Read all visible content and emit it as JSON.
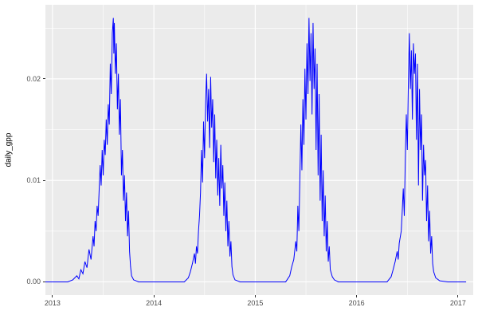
{
  "chart_data": {
    "type": "line",
    "title": "",
    "xlabel": "",
    "ylabel": "daily_gpp",
    "legend": "none",
    "grid": "on",
    "panel_bg": "#EBEBEB",
    "grid_color": "#FFFFFF",
    "line_color": "#0000FF",
    "xlim": [
      2012.93,
      2017.15
    ],
    "ylim": [
      -0.0013,
      0.0273
    ],
    "x_ticks": [
      {
        "value": 2013,
        "label": "2013"
      },
      {
        "value": 2014,
        "label": "2014"
      },
      {
        "value": 2015,
        "label": "2015"
      },
      {
        "value": 2016,
        "label": "2016"
      },
      {
        "value": 2017,
        "label": "2017"
      }
    ],
    "y_ticks": [
      {
        "value": 0.0,
        "label": "0.00"
      },
      {
        "value": 0.01,
        "label": "0.01"
      },
      {
        "value": 0.02,
        "label": "0.02"
      }
    ],
    "x_minor": [
      2013.5,
      2014.5,
      2015.5,
      2016.5
    ],
    "y_minor": [
      0.005,
      0.015,
      0.025
    ],
    "series": [
      {
        "name": "daily_gpp",
        "points": [
          [
            2012.93,
            0
          ],
          [
            2013.0,
            0
          ],
          [
            2013.05,
            0
          ],
          [
            2013.1,
            0
          ],
          [
            2013.15,
            0
          ],
          [
            2013.2,
            0.0002
          ],
          [
            2013.24,
            0.0006
          ],
          [
            2013.26,
            0.0003
          ],
          [
            2013.28,
            0.0012
          ],
          [
            2013.3,
            0.0008
          ],
          [
            2013.32,
            0.002
          ],
          [
            2013.34,
            0.0014
          ],
          [
            2013.36,
            0.0032
          ],
          [
            2013.38,
            0.0022
          ],
          [
            2013.4,
            0.0045
          ],
          [
            2013.41,
            0.0035
          ],
          [
            2013.42,
            0.006
          ],
          [
            2013.43,
            0.005
          ],
          [
            2013.44,
            0.0075
          ],
          [
            2013.45,
            0.0065
          ],
          [
            2013.46,
            0.009
          ],
          [
            2013.47,
            0.0115
          ],
          [
            2013.48,
            0.0095
          ],
          [
            2013.49,
            0.013
          ],
          [
            2013.5,
            0.0105
          ],
          [
            2013.51,
            0.014
          ],
          [
            2013.52,
            0.0125
          ],
          [
            2013.53,
            0.016
          ],
          [
            2013.54,
            0.0135
          ],
          [
            2013.55,
            0.0175
          ],
          [
            2013.56,
            0.0155
          ],
          [
            2013.57,
            0.0215
          ],
          [
            2013.58,
            0.0185
          ],
          [
            2013.59,
            0.0245
          ],
          [
            2013.6,
            0.026
          ],
          [
            2013.605,
            0.0225
          ],
          [
            2013.61,
            0.0255
          ],
          [
            2013.62,
            0.0205
          ],
          [
            2013.63,
            0.0235
          ],
          [
            2013.64,
            0.017
          ],
          [
            2013.65,
            0.0205
          ],
          [
            2013.66,
            0.0145
          ],
          [
            2013.67,
            0.018
          ],
          [
            2013.68,
            0.0105
          ],
          [
            2013.69,
            0.013
          ],
          [
            2013.7,
            0.008
          ],
          [
            2013.71,
            0.0105
          ],
          [
            2013.72,
            0.006
          ],
          [
            2013.73,
            0.0088
          ],
          [
            2013.74,
            0.0045
          ],
          [
            2013.75,
            0.007
          ],
          [
            2013.76,
            0.003
          ],
          [
            2013.77,
            0.0015
          ],
          [
            2013.78,
            0.0006
          ],
          [
            2013.8,
            0.0002
          ],
          [
            2013.85,
            0
          ],
          [
            2013.9,
            0
          ],
          [
            2014.0,
            0
          ],
          [
            2014.1,
            0
          ],
          [
            2014.2,
            0
          ],
          [
            2014.3,
            0
          ],
          [
            2014.34,
            0.0004
          ],
          [
            2014.36,
            0.001
          ],
          [
            2014.38,
            0.0018
          ],
          [
            2014.4,
            0.0028
          ],
          [
            2014.41,
            0.0018
          ],
          [
            2014.42,
            0.0035
          ],
          [
            2014.43,
            0.0028
          ],
          [
            2014.44,
            0.005
          ],
          [
            2014.45,
            0.0065
          ],
          [
            2014.46,
            0.0088
          ],
          [
            2014.47,
            0.013
          ],
          [
            2014.48,
            0.0098
          ],
          [
            2014.49,
            0.0158
          ],
          [
            2014.5,
            0.0122
          ],
          [
            2014.51,
            0.0178
          ],
          [
            2014.52,
            0.0205
          ],
          [
            2014.53,
            0.0158
          ],
          [
            2014.54,
            0.019
          ],
          [
            2014.55,
            0.0132
          ],
          [
            2014.56,
            0.0202
          ],
          [
            2014.57,
            0.0152
          ],
          [
            2014.58,
            0.018
          ],
          [
            2014.59,
            0.0118
          ],
          [
            2014.6,
            0.0165
          ],
          [
            2014.61,
            0.0102
          ],
          [
            2014.62,
            0.014
          ],
          [
            2014.63,
            0.0085
          ],
          [
            2014.64,
            0.0122
          ],
          [
            2014.65,
            0.0075
          ],
          [
            2014.66,
            0.0135
          ],
          [
            2014.67,
            0.0092
          ],
          [
            2014.68,
            0.0115
          ],
          [
            2014.69,
            0.0065
          ],
          [
            2014.7,
            0.0098
          ],
          [
            2014.71,
            0.005
          ],
          [
            2014.72,
            0.008
          ],
          [
            2014.73,
            0.0035
          ],
          [
            2014.74,
            0.006
          ],
          [
            2014.75,
            0.0025
          ],
          [
            2014.76,
            0.004
          ],
          [
            2014.77,
            0.0015
          ],
          [
            2014.78,
            0.0007
          ],
          [
            2014.8,
            0.0002
          ],
          [
            2014.85,
            0
          ],
          [
            2014.9,
            0
          ],
          [
            2015.0,
            0
          ],
          [
            2015.1,
            0
          ],
          [
            2015.2,
            0
          ],
          [
            2015.3,
            0
          ],
          [
            2015.34,
            0.0006
          ],
          [
            2015.36,
            0.0015
          ],
          [
            2015.38,
            0.0022
          ],
          [
            2015.4,
            0.004
          ],
          [
            2015.41,
            0.003
          ],
          [
            2015.42,
            0.0075
          ],
          [
            2015.43,
            0.005
          ],
          [
            2015.44,
            0.0102
          ],
          [
            2015.45,
            0.0155
          ],
          [
            2015.46,
            0.011
          ],
          [
            2015.47,
            0.018
          ],
          [
            2015.48,
            0.0135
          ],
          [
            2015.49,
            0.021
          ],
          [
            2015.5,
            0.016
          ],
          [
            2015.51,
            0.0235
          ],
          [
            2015.52,
            0.0185
          ],
          [
            2015.53,
            0.026
          ],
          [
            2015.54,
            0.0198
          ],
          [
            2015.55,
            0.0245
          ],
          [
            2015.56,
            0.0165
          ],
          [
            2015.57,
            0.0255
          ],
          [
            2015.58,
            0.019
          ],
          [
            2015.59,
            0.023
          ],
          [
            2015.6,
            0.013
          ],
          [
            2015.61,
            0.0215
          ],
          [
            2015.62,
            0.0105
          ],
          [
            2015.63,
            0.0185
          ],
          [
            2015.64,
            0.008
          ],
          [
            2015.65,
            0.0145
          ],
          [
            2015.66,
            0.006
          ],
          [
            2015.67,
            0.011
          ],
          [
            2015.68,
            0.0045
          ],
          [
            2015.69,
            0.0085
          ],
          [
            2015.7,
            0.003
          ],
          [
            2015.71,
            0.006
          ],
          [
            2015.72,
            0.002
          ],
          [
            2015.73,
            0.0035
          ],
          [
            2015.74,
            0.0012
          ],
          [
            2015.76,
            0.0005
          ],
          [
            2015.78,
            0.0002
          ],
          [
            2015.82,
            0
          ],
          [
            2015.9,
            0
          ],
          [
            2016.0,
            0
          ],
          [
            2016.1,
            0
          ],
          [
            2016.2,
            0
          ],
          [
            2016.3,
            0
          ],
          [
            2016.34,
            0.0005
          ],
          [
            2016.36,
            0.0012
          ],
          [
            2016.38,
            0.002
          ],
          [
            2016.4,
            0.003
          ],
          [
            2016.41,
            0.0022
          ],
          [
            2016.42,
            0.0038
          ],
          [
            2016.44,
            0.005
          ],
          [
            2016.45,
            0.007
          ],
          [
            2016.46,
            0.0092
          ],
          [
            2016.47,
            0.0065
          ],
          [
            2016.48,
            0.012
          ],
          [
            2016.49,
            0.0165
          ],
          [
            2016.5,
            0.013
          ],
          [
            2016.51,
            0.0195
          ],
          [
            2016.52,
            0.0245
          ],
          [
            2016.53,
            0.019
          ],
          [
            2016.54,
            0.0228
          ],
          [
            2016.55,
            0.016
          ],
          [
            2016.56,
            0.0235
          ],
          [
            2016.57,
            0.0205
          ],
          [
            2016.58,
            0.0225
          ],
          [
            2016.59,
            0.014
          ],
          [
            2016.6,
            0.0215
          ],
          [
            2016.61,
            0.0095
          ],
          [
            2016.62,
            0.019
          ],
          [
            2016.63,
            0.013
          ],
          [
            2016.64,
            0.0165
          ],
          [
            2016.65,
            0.008
          ],
          [
            2016.66,
            0.0135
          ],
          [
            2016.67,
            0.0105
          ],
          [
            2016.68,
            0.012
          ],
          [
            2016.69,
            0.006
          ],
          [
            2016.7,
            0.0095
          ],
          [
            2016.71,
            0.004
          ],
          [
            2016.72,
            0.007
          ],
          [
            2016.73,
            0.0028
          ],
          [
            2016.74,
            0.0045
          ],
          [
            2016.75,
            0.0018
          ],
          [
            2016.76,
            0.001
          ],
          [
            2016.78,
            0.0004
          ],
          [
            2016.82,
            0.0001
          ],
          [
            2016.9,
            0
          ],
          [
            2017.0,
            0
          ],
          [
            2017.08,
            0
          ]
        ]
      }
    ]
  }
}
